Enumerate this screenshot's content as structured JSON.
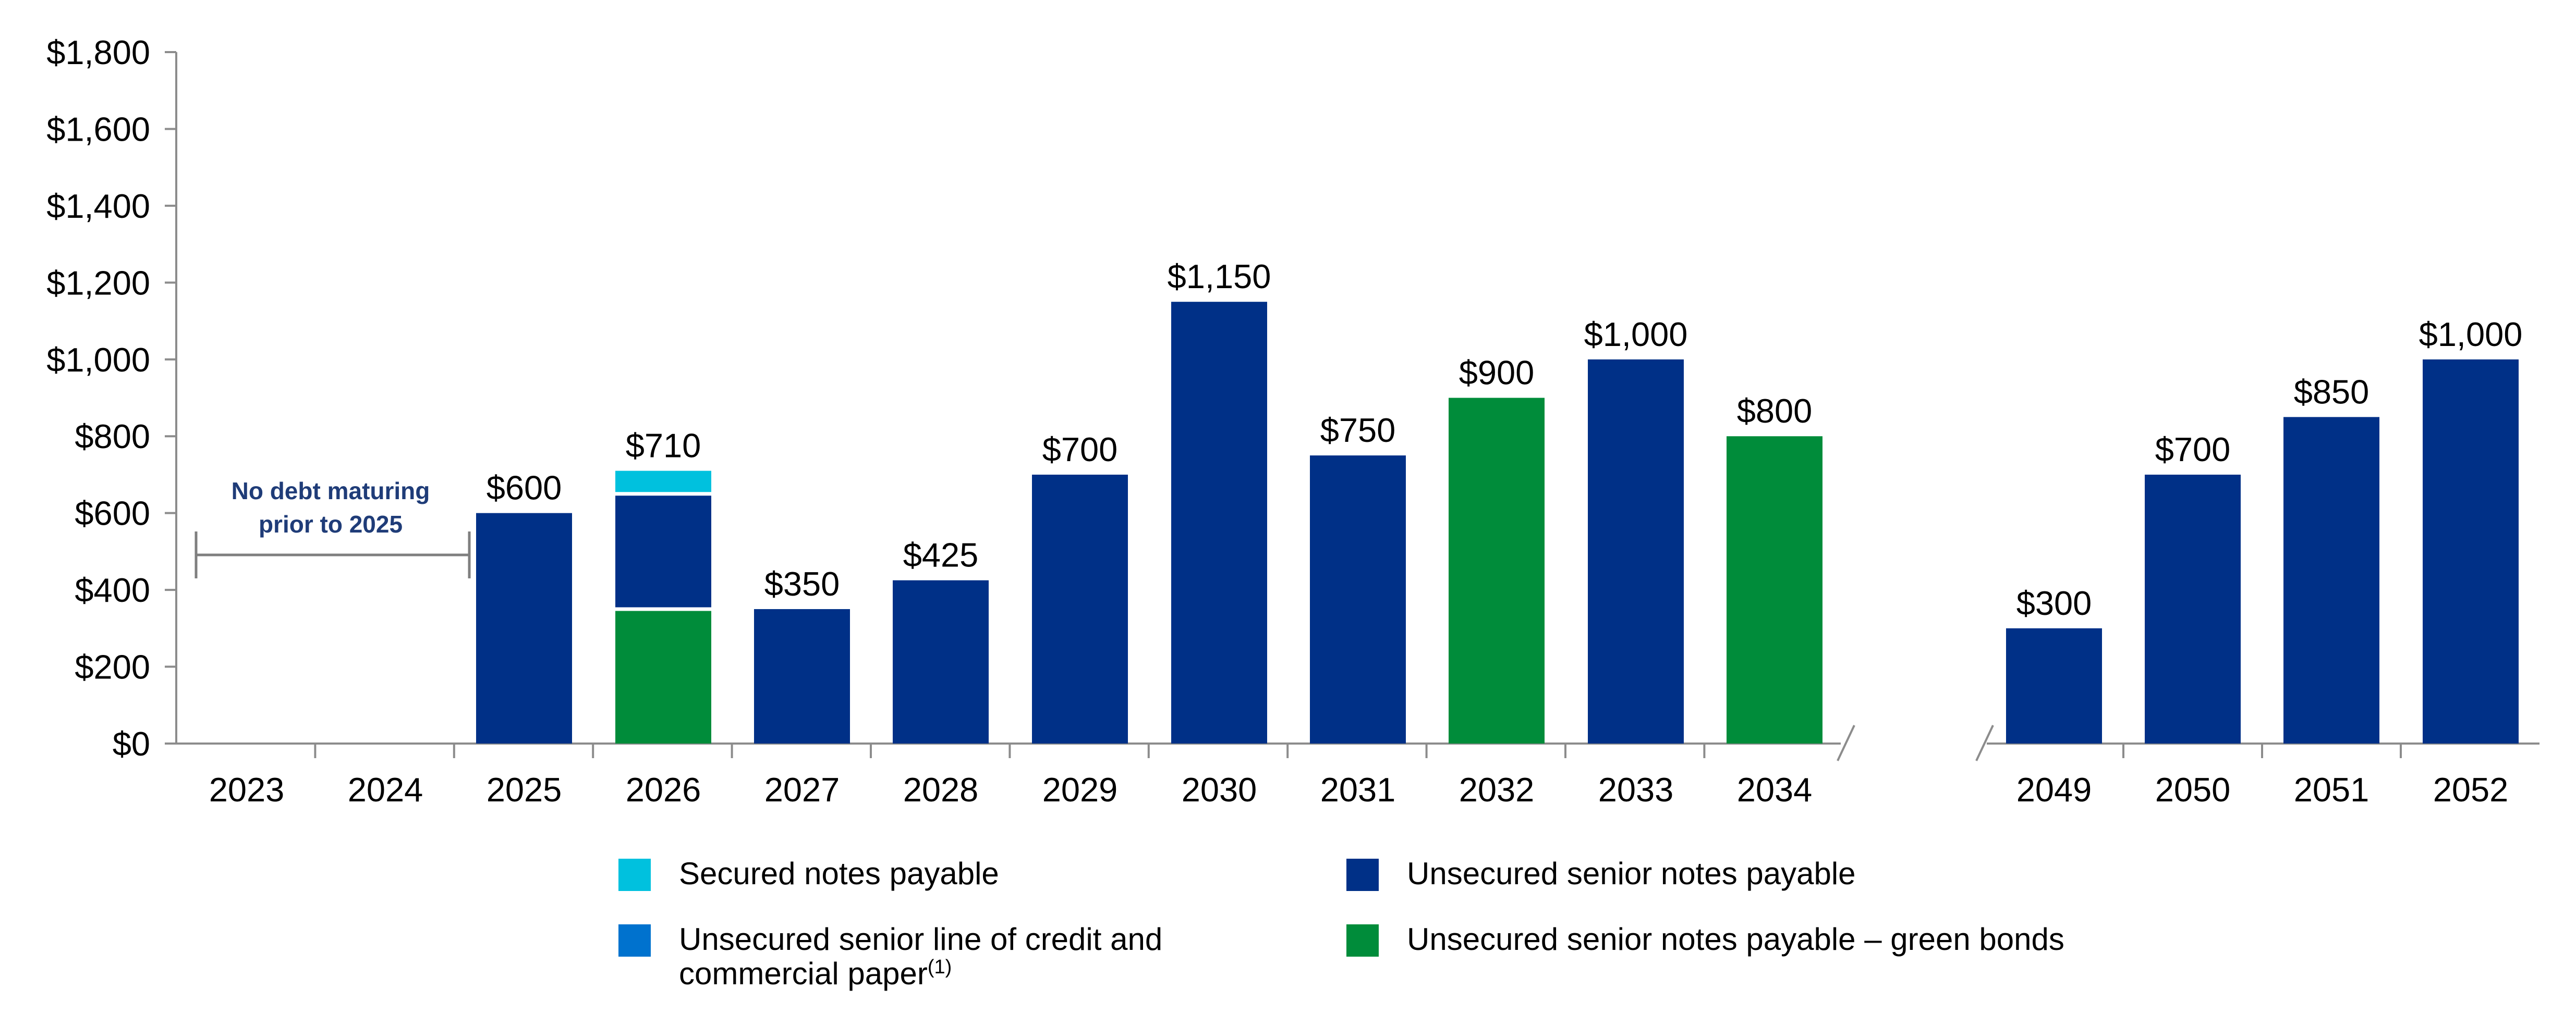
{
  "chart_data": {
    "type": "bar",
    "stacked": true,
    "categories": [
      "2023",
      "2024",
      "2025",
      "2026",
      "2027",
      "2028",
      "2029",
      "2030",
      "2031",
      "2032",
      "2033",
      "2034",
      "2049",
      "2050",
      "2051",
      "2052"
    ],
    "axis_break_after": "2034",
    "ylim": [
      0,
      1800
    ],
    "yticks": [
      0,
      200,
      400,
      600,
      800,
      1000,
      1200,
      1400,
      1600,
      1800
    ],
    "ytick_labels": [
      "$0",
      "$200",
      "$400",
      "$600",
      "$800",
      "$1,000",
      "$1,200",
      "$1,400",
      "$1,600",
      "$1,800"
    ],
    "series": [
      {
        "name": "Unsecured senior notes payable – green bonds",
        "color": "#008C3A",
        "values": [
          0,
          0,
          0,
          350,
          0,
          0,
          0,
          0,
          0,
          900,
          0,
          800,
          0,
          0,
          0,
          0
        ]
      },
      {
        "name": "Unsecured senior notes payable",
        "color": "#003087",
        "values": [
          0,
          0,
          600,
          300,
          350,
          425,
          700,
          1150,
          750,
          0,
          1000,
          0,
          300,
          700,
          850,
          1000
        ]
      },
      {
        "name": "Unsecured senior line of credit and commercial paper",
        "color": "#0072CE",
        "values": [
          0,
          0,
          0,
          0,
          0,
          0,
          0,
          0,
          0,
          0,
          0,
          0,
          0,
          0,
          0,
          0
        ]
      },
      {
        "name": "Secured notes payable",
        "color": "#00C1DE",
        "values": [
          0,
          0,
          0,
          60,
          0,
          0,
          0,
          0,
          0,
          0,
          0,
          0,
          0,
          0,
          0,
          0
        ]
      }
    ],
    "data_labels": [
      "",
      "",
      "$600",
      "$710",
      "$350",
      "$425",
      "$700",
      "$1,150",
      "$750",
      "$900",
      "$1,000",
      "$800",
      "$300",
      "$700",
      "$850",
      "$1,000"
    ],
    "annotation": {
      "line1": "No debt maturing",
      "line2": "prior to 2025"
    },
    "legend": {
      "secured": "Secured notes payable",
      "line_credit": "Unsecured senior line of credit and",
      "line_credit_2": "commercial paper",
      "line_credit_sup": "(1)",
      "unsecured": "Unsecured senior notes payable",
      "green": "Unsecured senior notes payable – green bonds"
    },
    "grid": false,
    "legend_position": "bottom"
  }
}
